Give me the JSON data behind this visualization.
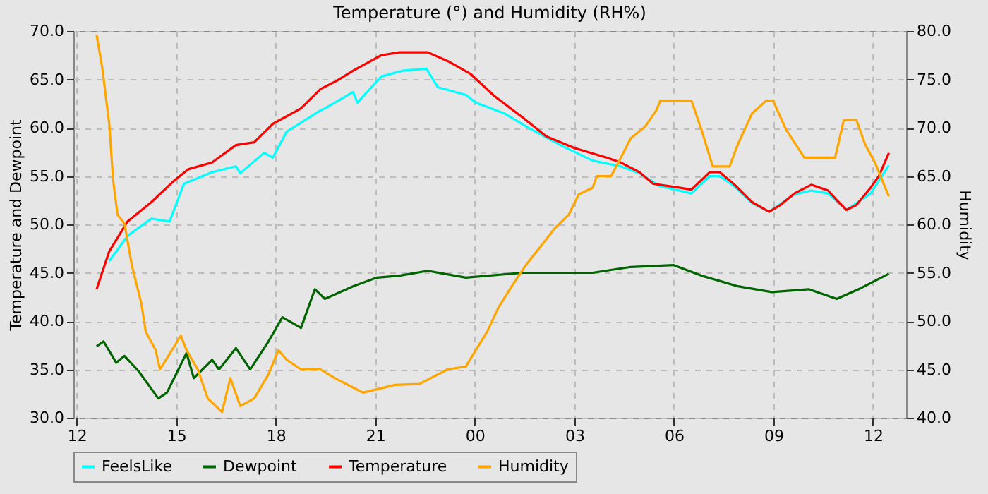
{
  "chart_data": {
    "type": "line",
    "title": "Temperature (°) and Humidity (RH%)",
    "ylabel": "Temperature and Dewpoint",
    "y2label": "Humidity",
    "xlim": [
      11.9,
      37
    ],
    "xticks": [
      {
        "value": 12,
        "label": "12"
      },
      {
        "value": 15,
        "label": "15"
      },
      {
        "value": 18,
        "label": "18"
      },
      {
        "value": 21,
        "label": "21"
      },
      {
        "value": 24,
        "label": "00"
      },
      {
        "value": 27,
        "label": "03"
      },
      {
        "value": 30,
        "label": "06"
      },
      {
        "value": 33,
        "label": "09"
      },
      {
        "value": 36,
        "label": "12"
      }
    ],
    "ylim": [
      30,
      70
    ],
    "yticks": [
      {
        "value": 30,
        "label": "30.0"
      },
      {
        "value": 35,
        "label": "35.0"
      },
      {
        "value": 40,
        "label": "40.0"
      },
      {
        "value": 45,
        "label": "45.0"
      },
      {
        "value": 50,
        "label": "50.0"
      },
      {
        "value": 55,
        "label": "55.0"
      },
      {
        "value": 60,
        "label": "60.0"
      },
      {
        "value": 65,
        "label": "65.0"
      },
      {
        "value": 70,
        "label": "70.0"
      }
    ],
    "y2lim": [
      40,
      80
    ],
    "y2ticks": [
      {
        "value": 40,
        "label": "40.0"
      },
      {
        "value": 45,
        "label": "45.0"
      },
      {
        "value": 50,
        "label": "50.0"
      },
      {
        "value": 55,
        "label": "55.0"
      },
      {
        "value": 60,
        "label": "60.0"
      },
      {
        "value": 65,
        "label": "65.0"
      },
      {
        "value": 70,
        "label": "70.0"
      },
      {
        "value": 75,
        "label": "75.0"
      },
      {
        "value": 80,
        "label": "80.0"
      }
    ],
    "grid": true,
    "legend": "bottom",
    "series": [
      {
        "name": "FeelsLike",
        "color": "#00ffff",
        "x": [
          12.98,
          13.53,
          14.25,
          14.8,
          15.23,
          16.08,
          16.8,
          16.93,
          17.65,
          17.91,
          18.33,
          19.35,
          19.48,
          20.33,
          20.46,
          21.18,
          21.82,
          22.54,
          22.88,
          23.73,
          24.03,
          24.88,
          25.56,
          26.58,
          27.55,
          28.4,
          28.96,
          29.55,
          30.53,
          31.08,
          31.38,
          31.8,
          32.36,
          32.87,
          33.63,
          34.14,
          34.65,
          35.2,
          35.93,
          36.48
        ],
        "values": [
          46.2,
          48.8,
          50.6,
          50.3,
          54.2,
          55.4,
          56.0,
          55.3,
          57.4,
          56.9,
          59.6,
          61.8,
          62.0,
          63.7,
          62.6,
          65.3,
          65.9,
          66.1,
          64.2,
          63.4,
          62.6,
          61.5,
          60.1,
          58.2,
          56.6,
          56.0,
          55.3,
          54.0,
          53.2,
          55.0,
          55.0,
          54.0,
          52.2,
          51.3,
          53.1,
          53.5,
          53.2,
          51.5,
          53.2,
          56.1
        ]
      },
      {
        "name": "Dewpoint",
        "color": "#006400",
        "x": [
          12.6,
          12.81,
          13.19,
          13.44,
          13.87,
          14.46,
          14.72,
          15.31,
          15.53,
          16.08,
          16.29,
          16.8,
          17.23,
          17.78,
          18.2,
          18.76,
          19.18,
          19.48,
          20.33,
          21.05,
          21.73,
          22.58,
          23.73,
          25.43,
          27.55,
          28.7,
          29.98,
          30.83,
          31.93,
          32.95,
          34.06,
          34.91,
          35.63,
          36.48
        ],
        "values": [
          37.4,
          37.9,
          35.7,
          36.4,
          34.8,
          32.0,
          32.6,
          36.7,
          34.1,
          36.0,
          35.0,
          37.2,
          35.0,
          37.9,
          40.4,
          39.3,
          43.3,
          42.3,
          43.6,
          44.5,
          44.7,
          45.2,
          44.5,
          45.0,
          45.0,
          45.6,
          45.8,
          44.7,
          43.6,
          43.0,
          43.3,
          42.3,
          43.4,
          44.9
        ]
      },
      {
        "name": "Temperature",
        "color": "#ff0000",
        "x": [
          12.6,
          12.98,
          13.53,
          14.25,
          14.93,
          15.36,
          16.08,
          16.8,
          17.35,
          17.91,
          18.76,
          19.35,
          19.86,
          20.33,
          21.18,
          21.73,
          22.58,
          23.18,
          23.86,
          24.58,
          25.43,
          26.15,
          27.0,
          27.98,
          28.4,
          28.96,
          29.38,
          29.98,
          30.53,
          31.08,
          31.38,
          31.8,
          32.36,
          32.87,
          33.21,
          33.63,
          34.14,
          34.65,
          34.91,
          35.2,
          35.5,
          35.93,
          36.18,
          36.48
        ],
        "values": [
          43.3,
          47.2,
          50.3,
          52.3,
          54.5,
          55.7,
          56.4,
          58.2,
          58.5,
          60.4,
          62.0,
          64.0,
          64.9,
          65.9,
          67.5,
          67.8,
          67.8,
          66.9,
          65.6,
          63.3,
          61.1,
          59.1,
          57.9,
          56.9,
          56.4,
          55.4,
          54.2,
          53.9,
          53.6,
          55.4,
          55.4,
          54.2,
          52.3,
          51.3,
          52.0,
          53.2,
          54.1,
          53.5,
          52.5,
          51.5,
          52.0,
          53.8,
          55.0,
          57.4
        ]
      },
      {
        "name": "Humidity",
        "color": "#ffa500",
        "axis": "y2",
        "x": [
          12.6,
          12.77,
          12.98,
          13.1,
          13.23,
          13.44,
          13.66,
          13.95,
          14.08,
          14.38,
          14.51,
          15.14,
          15.31,
          15.65,
          15.95,
          16.38,
          16.63,
          16.93,
          17.35,
          17.78,
          18.08,
          18.33,
          18.76,
          19.35,
          19.78,
          20.63,
          21.6,
          22.33,
          23.18,
          23.73,
          24.03,
          24.37,
          24.71,
          25.13,
          25.56,
          25.98,
          26.41,
          26.83,
          27.13,
          27.55,
          27.68,
          28.11,
          28.4,
          28.7,
          29.13,
          29.47,
          29.59,
          30.53,
          30.83,
          31.17,
          31.68,
          31.93,
          32.36,
          32.78,
          32.99,
          33.38,
          33.93,
          34.86,
          35.12,
          35.5,
          35.76,
          36.06,
          36.48
        ],
        "values": [
          79.6,
          76.2,
          70.4,
          64.5,
          61.0,
          60.1,
          55.8,
          51.8,
          48.9,
          47.0,
          45.0,
          48.5,
          47.0,
          45.0,
          42.0,
          40.6,
          44.1,
          41.2,
          42.0,
          44.5,
          47.0,
          46.0,
          45.0,
          45.0,
          44.1,
          42.6,
          43.4,
          43.5,
          45.0,
          45.3,
          47.0,
          48.9,
          51.4,
          53.7,
          55.9,
          57.7,
          59.6,
          61.0,
          63.1,
          63.8,
          65.0,
          65.0,
          66.9,
          68.9,
          70.1,
          71.8,
          72.8,
          72.8,
          69.8,
          66.0,
          66.0,
          68.3,
          71.5,
          72.8,
          72.8,
          69.8,
          66.9,
          66.9,
          70.8,
          70.8,
          68.3,
          66.4,
          62.9
        ]
      }
    ]
  }
}
